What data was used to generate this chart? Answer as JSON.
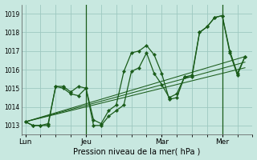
{
  "title": "Pression niveau de la mer( hPa )",
  "bg_color": "#c8e8e0",
  "grid_color": "#9ec8c0",
  "line_color": "#1a5c1a",
  "x_ticks_labels": [
    "Lun",
    "Jeu",
    "Mar",
    "Mer"
  ],
  "x_ticks_pos": [
    0,
    16,
    36,
    52
  ],
  "xlim": [
    -1,
    60
  ],
  "ylim": [
    1012.5,
    1019.5
  ],
  "yticks": [
    1013,
    1014,
    1015,
    1016,
    1017,
    1018,
    1019
  ],
  "vlines_x": [
    16,
    52
  ],
  "line1_x": [
    0,
    2,
    4,
    6,
    8,
    10,
    12,
    14,
    16,
    18,
    20,
    22,
    24,
    26,
    28,
    30,
    32,
    34,
    36,
    38,
    40,
    42,
    44,
    46,
    48,
    50,
    52,
    54,
    56,
    58
  ],
  "line1_y": [
    1013.2,
    1013.0,
    1013.0,
    1013.1,
    1015.1,
    1015.1,
    1014.8,
    1015.1,
    1015.0,
    1013.3,
    1013.1,
    1013.8,
    1014.1,
    1015.9,
    1016.9,
    1017.0,
    1017.3,
    1016.8,
    1015.8,
    1014.4,
    1014.5,
    1015.6,
    1015.6,
    1018.0,
    1018.3,
    1018.8,
    1018.9,
    1017.0,
    1015.8,
    1016.7
  ],
  "line2_x": [
    0,
    2,
    4,
    6,
    8,
    10,
    12,
    14,
    16,
    18,
    20,
    22,
    24,
    26,
    28,
    30,
    32,
    34,
    36,
    38,
    40,
    42,
    44,
    46,
    48,
    50,
    52,
    54,
    56,
    58
  ],
  "line2_y": [
    1013.2,
    1013.0,
    1013.0,
    1013.0,
    1015.1,
    1015.0,
    1014.7,
    1014.6,
    1015.0,
    1013.0,
    1013.0,
    1013.5,
    1013.8,
    1014.1,
    1015.9,
    1016.1,
    1016.9,
    1015.8,
    1015.2,
    1014.5,
    1014.7,
    1015.6,
    1015.7,
    1018.0,
    1018.3,
    1018.8,
    1018.9,
    1016.9,
    1015.7,
    1016.7
  ],
  "trend_lines": [
    {
      "x": [
        0,
        58
      ],
      "y": [
        1013.2,
        1016.7
      ]
    },
    {
      "x": [
        0,
        58
      ],
      "y": [
        1013.2,
        1016.4
      ]
    },
    {
      "x": [
        0,
        58
      ],
      "y": [
        1013.2,
        1016.1
      ]
    }
  ],
  "n_grid_x": 12,
  "figsize": [
    3.2,
    2.0
  ],
  "dpi": 100
}
